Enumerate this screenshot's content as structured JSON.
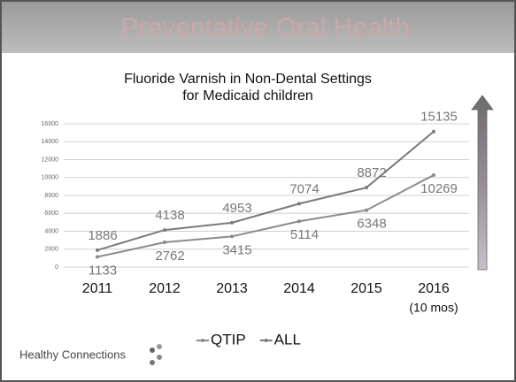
{
  "slide": {
    "title": "Preventative Oral Health",
    "logo": "Healthy Connections"
  },
  "chart_data": {
    "type": "line",
    "title": "Fluoride Varnish in Non-Dental Settings for Medicaid children",
    "categories": [
      "2011",
      "2012",
      "2013",
      "2014",
      "2015",
      "2016"
    ],
    "category_note": "(10 mos)",
    "series": [
      {
        "name": "QTIP",
        "color": "#8a8a8a",
        "values": [
          1133,
          2762,
          3415,
          5114,
          6348,
          10269
        ],
        "label_side": "below"
      },
      {
        "name": "ALL",
        "color": "#7a7a7a",
        "values": [
          1886,
          4138,
          4953,
          7074,
          8872,
          15135
        ],
        "label_side": "above"
      }
    ],
    "ylim": [
      0,
      16000
    ],
    "yticks": [
      0,
      2000,
      4000,
      6000,
      8000,
      10000,
      12000,
      14000,
      16000
    ],
    "grid": true
  }
}
